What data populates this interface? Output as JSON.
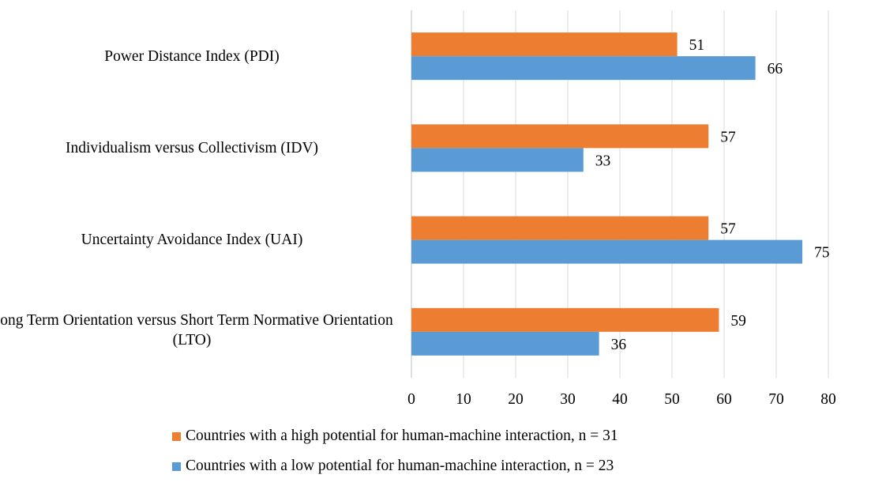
{
  "chart_data": {
    "type": "bar",
    "orientation": "horizontal",
    "title": "",
    "xlabel": "",
    "ylabel": "",
    "xlim": [
      0,
      80
    ],
    "x_ticks": [
      0,
      10,
      20,
      30,
      40,
      50,
      60,
      70,
      80
    ],
    "grid": true,
    "legend_position": "bottom",
    "categories": [
      "Power Distance Index (PDI)",
      "Individualism versus Collectivism (IDV)",
      "Uncertainty Avoidance Index (UAI)",
      "Long Term Orientation versus Short Term Normative Orientation (LTO)"
    ],
    "series": [
      {
        "name": "Countries with a high potential for human-machine interaction, n = 31",
        "color": "#ED7D31",
        "values": [
          51,
          57,
          57,
          59
        ]
      },
      {
        "name": "Countries with a low potential for human-machine interaction, n = 23",
        "color": "#5B9BD5",
        "values": [
          66,
          33,
          75,
          36
        ]
      }
    ]
  }
}
